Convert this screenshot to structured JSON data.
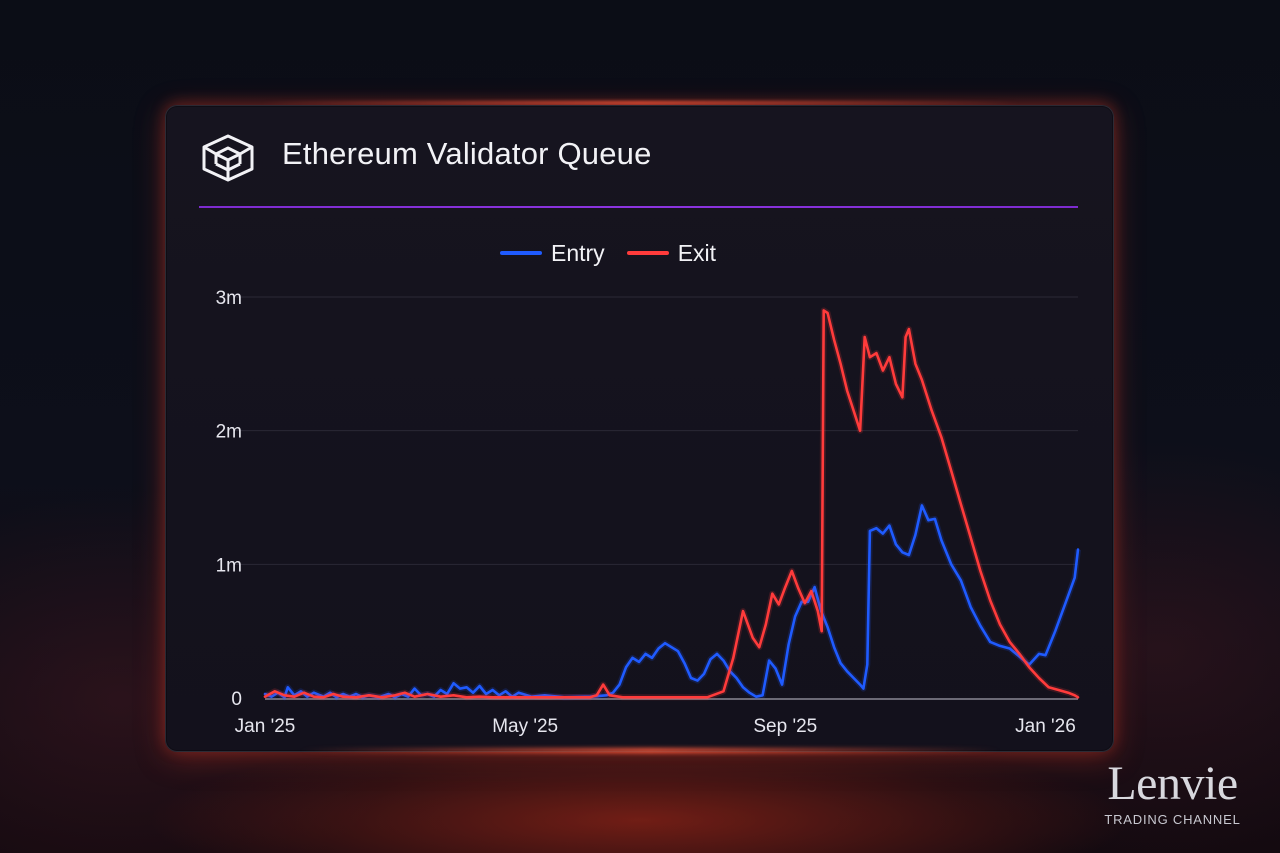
{
  "header": {
    "title": "Ethereum Validator Queue",
    "icon": "cube-icon"
  },
  "brand": {
    "name": "Lenvie",
    "tagline": "TRADING CHANNEL"
  },
  "colors": {
    "entry": "#1f5bff",
    "exit": "#ff3b3b",
    "divider": "#8a33dd",
    "grid": "#2a2836"
  },
  "chart_data": {
    "type": "line",
    "title": "Ethereum Validator Queue",
    "xlabel": "",
    "ylabel": "",
    "legend": "top-center",
    "grid": true,
    "x_range": [
      0,
      12.5
    ],
    "ylim": [
      0,
      3000000
    ],
    "x_ticks": [
      {
        "value": 0,
        "label": "Jan '25"
      },
      {
        "value": 4,
        "label": "May '25"
      },
      {
        "value": 8,
        "label": "Sep '25"
      },
      {
        "value": 12,
        "label": "Jan '26"
      }
    ],
    "y_ticks": [
      {
        "value": 0,
        "label": "0"
      },
      {
        "value": 1000000,
        "label": "1m"
      },
      {
        "value": 2000000,
        "label": "2m"
      },
      {
        "value": 3000000,
        "label": "3m"
      }
    ],
    "series": [
      {
        "name": "Entry",
        "color": "#1f5bff",
        "points": [
          [
            0.0,
            30000
          ],
          [
            0.1,
            10000
          ],
          [
            0.2,
            40000
          ],
          [
            0.3,
            5000
          ],
          [
            0.35,
            80000
          ],
          [
            0.45,
            20000
          ],
          [
            0.55,
            50000
          ],
          [
            0.65,
            10000
          ],
          [
            0.75,
            40000
          ],
          [
            0.9,
            10000
          ],
          [
            1.0,
            40000
          ],
          [
            1.1,
            5000
          ],
          [
            1.2,
            30000
          ],
          [
            1.3,
            10000
          ],
          [
            1.4,
            30000
          ],
          [
            1.5,
            5000
          ],
          [
            1.6,
            20000
          ],
          [
            1.75,
            5000
          ],
          [
            1.9,
            30000
          ],
          [
            2.0,
            5000
          ],
          [
            2.1,
            30000
          ],
          [
            2.2,
            10000
          ],
          [
            2.3,
            70000
          ],
          [
            2.4,
            20000
          ],
          [
            2.5,
            30000
          ],
          [
            2.6,
            10000
          ],
          [
            2.7,
            60000
          ],
          [
            2.8,
            30000
          ],
          [
            2.9,
            110000
          ],
          [
            3.0,
            70000
          ],
          [
            3.1,
            80000
          ],
          [
            3.2,
            40000
          ],
          [
            3.3,
            90000
          ],
          [
            3.4,
            30000
          ],
          [
            3.5,
            60000
          ],
          [
            3.6,
            20000
          ],
          [
            3.7,
            50000
          ],
          [
            3.8,
            10000
          ],
          [
            3.9,
            40000
          ],
          [
            4.1,
            10000
          ],
          [
            4.3,
            20000
          ],
          [
            4.6,
            5000
          ],
          [
            5.0,
            10000
          ],
          [
            5.25,
            20000
          ],
          [
            5.35,
            40000
          ],
          [
            5.45,
            100000
          ],
          [
            5.55,
            230000
          ],
          [
            5.65,
            300000
          ],
          [
            5.75,
            270000
          ],
          [
            5.85,
            330000
          ],
          [
            5.95,
            300000
          ],
          [
            6.05,
            370000
          ],
          [
            6.15,
            410000
          ],
          [
            6.25,
            380000
          ],
          [
            6.35,
            350000
          ],
          [
            6.45,
            260000
          ],
          [
            6.55,
            150000
          ],
          [
            6.65,
            130000
          ],
          [
            6.75,
            180000
          ],
          [
            6.85,
            290000
          ],
          [
            6.95,
            330000
          ],
          [
            7.05,
            280000
          ],
          [
            7.15,
            200000
          ],
          [
            7.25,
            150000
          ],
          [
            7.35,
            80000
          ],
          [
            7.45,
            40000
          ],
          [
            7.55,
            10000
          ],
          [
            7.65,
            20000
          ],
          [
            7.75,
            280000
          ],
          [
            7.85,
            220000
          ],
          [
            7.95,
            100000
          ],
          [
            8.05,
            400000
          ],
          [
            8.15,
            610000
          ],
          [
            8.25,
            720000
          ],
          [
            8.35,
            720000
          ],
          [
            8.45,
            830000
          ],
          [
            8.55,
            650000
          ],
          [
            8.65,
            530000
          ],
          [
            8.75,
            380000
          ],
          [
            8.85,
            260000
          ],
          [
            8.95,
            200000
          ],
          [
            9.05,
            150000
          ],
          [
            9.15,
            100000
          ],
          [
            9.2,
            70000
          ],
          [
            9.26,
            250000
          ],
          [
            9.3,
            1250000
          ],
          [
            9.4,
            1270000
          ],
          [
            9.5,
            1230000
          ],
          [
            9.6,
            1290000
          ],
          [
            9.7,
            1150000
          ],
          [
            9.8,
            1090000
          ],
          [
            9.9,
            1070000
          ],
          [
            10.0,
            1220000
          ],
          [
            10.1,
            1440000
          ],
          [
            10.2,
            1330000
          ],
          [
            10.3,
            1340000
          ],
          [
            10.4,
            1180000
          ],
          [
            10.55,
            1000000
          ],
          [
            10.7,
            880000
          ],
          [
            10.85,
            680000
          ],
          [
            11.0,
            540000
          ],
          [
            11.15,
            420000
          ],
          [
            11.3,
            390000
          ],
          [
            11.45,
            370000
          ],
          [
            11.6,
            310000
          ],
          [
            11.75,
            250000
          ],
          [
            11.9,
            330000
          ],
          [
            12.0,
            320000
          ],
          [
            12.15,
            500000
          ],
          [
            12.3,
            700000
          ],
          [
            12.45,
            900000
          ],
          [
            12.5,
            1110000
          ]
        ]
      },
      {
        "name": "Exit",
        "color": "#ff3b3b",
        "points": [
          [
            0.0,
            10000
          ],
          [
            0.15,
            50000
          ],
          [
            0.3,
            20000
          ],
          [
            0.45,
            10000
          ],
          [
            0.6,
            40000
          ],
          [
            0.75,
            10000
          ],
          [
            0.9,
            5000
          ],
          [
            1.05,
            30000
          ],
          [
            1.2,
            10000
          ],
          [
            1.4,
            5000
          ],
          [
            1.6,
            20000
          ],
          [
            1.8,
            5000
          ],
          [
            2.0,
            20000
          ],
          [
            2.15,
            40000
          ],
          [
            2.3,
            10000
          ],
          [
            2.5,
            30000
          ],
          [
            2.7,
            10000
          ],
          [
            2.9,
            20000
          ],
          [
            3.1,
            5000
          ],
          [
            3.3,
            10000
          ],
          [
            3.5,
            5000
          ],
          [
            3.8,
            5000
          ],
          [
            4.2,
            5000
          ],
          [
            4.6,
            5000
          ],
          [
            5.0,
            5000
          ],
          [
            5.1,
            20000
          ],
          [
            5.2,
            100000
          ],
          [
            5.3,
            20000
          ],
          [
            5.5,
            5000
          ],
          [
            6.0,
            5000
          ],
          [
            6.5,
            5000
          ],
          [
            6.8,
            5000
          ],
          [
            7.05,
            50000
          ],
          [
            7.2,
            300000
          ],
          [
            7.35,
            650000
          ],
          [
            7.5,
            450000
          ],
          [
            7.6,
            380000
          ],
          [
            7.7,
            550000
          ],
          [
            7.8,
            780000
          ],
          [
            7.9,
            700000
          ],
          [
            8.0,
            830000
          ],
          [
            8.1,
            950000
          ],
          [
            8.2,
            820000
          ],
          [
            8.3,
            710000
          ],
          [
            8.4,
            800000
          ],
          [
            8.5,
            650000
          ],
          [
            8.56,
            500000
          ],
          [
            8.59,
            2900000
          ],
          [
            8.65,
            2880000
          ],
          [
            8.75,
            2680000
          ],
          [
            8.85,
            2500000
          ],
          [
            8.95,
            2300000
          ],
          [
            9.05,
            2150000
          ],
          [
            9.15,
            2000000
          ],
          [
            9.22,
            2700000
          ],
          [
            9.3,
            2550000
          ],
          [
            9.4,
            2580000
          ],
          [
            9.5,
            2450000
          ],
          [
            9.6,
            2550000
          ],
          [
            9.7,
            2350000
          ],
          [
            9.8,
            2250000
          ],
          [
            9.85,
            2700000
          ],
          [
            9.9,
            2760000
          ],
          [
            10.0,
            2500000
          ],
          [
            10.1,
            2380000
          ],
          [
            10.25,
            2150000
          ],
          [
            10.4,
            1950000
          ],
          [
            10.55,
            1700000
          ],
          [
            10.7,
            1450000
          ],
          [
            10.85,
            1200000
          ],
          [
            11.0,
            950000
          ],
          [
            11.15,
            730000
          ],
          [
            11.3,
            550000
          ],
          [
            11.45,
            420000
          ],
          [
            11.6,
            330000
          ],
          [
            11.75,
            230000
          ],
          [
            11.9,
            150000
          ],
          [
            12.05,
            80000
          ],
          [
            12.2,
            60000
          ],
          [
            12.35,
            40000
          ],
          [
            12.45,
            20000
          ],
          [
            12.5,
            5000
          ]
        ]
      }
    ]
  }
}
